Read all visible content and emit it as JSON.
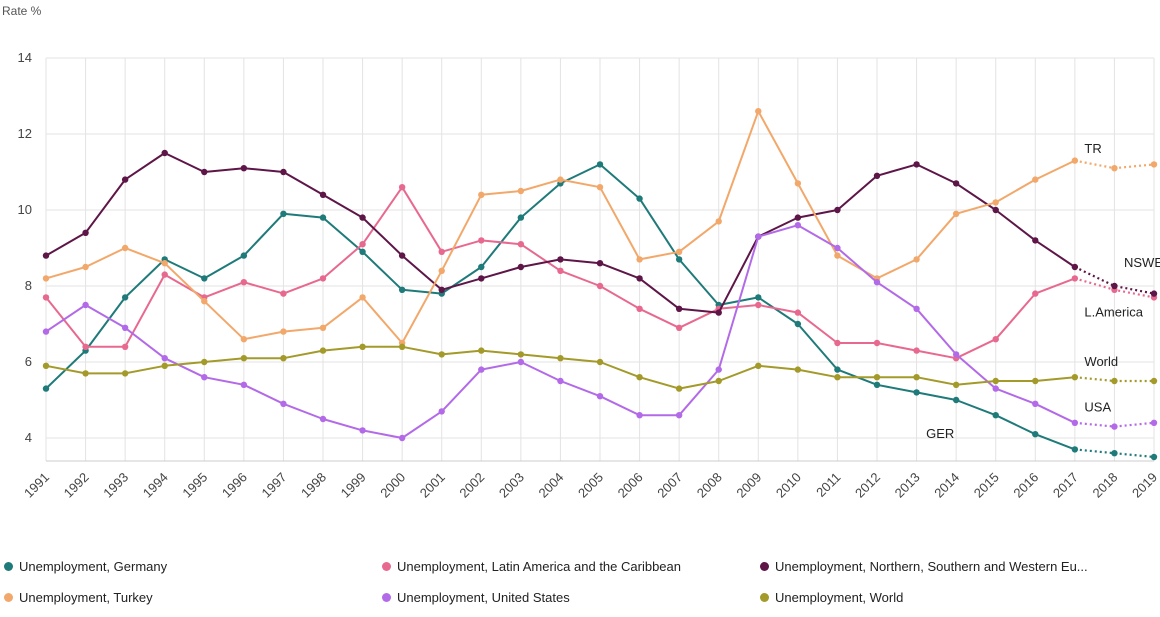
{
  "chart_data": {
    "type": "line",
    "ylabel": "Rate %",
    "xlabel": "",
    "ylim": [
      3.5,
      14
    ],
    "yticks": [
      4,
      6,
      8,
      10,
      12,
      14
    ],
    "grid": true,
    "legend_position": "bottom",
    "categories": [
      "1991",
      "1992",
      "1993",
      "1994",
      "1995",
      "1996",
      "1997",
      "1998",
      "1999",
      "2000",
      "2001",
      "2002",
      "2003",
      "2004",
      "2005",
      "2006",
      "2007",
      "2008",
      "2009",
      "2010",
      "2011",
      "2012",
      "2013",
      "2014",
      "2015",
      "2016",
      "2017",
      "2018",
      "2019"
    ],
    "series": [
      {
        "name": "Unemployment, Germany",
        "color": "#1f7a7a",
        "values": [
          5.3,
          6.3,
          7.7,
          8.7,
          8.2,
          8.8,
          9.9,
          9.8,
          8.9,
          7.9,
          7.8,
          8.5,
          9.8,
          10.7,
          11.2,
          10.3,
          8.7,
          7.5,
          7.7,
          7.0,
          5.8,
          5.4,
          5.2,
          5.0,
          4.6,
          4.1,
          3.7,
          3.6,
          3.5
        ]
      },
      {
        "name": "Unemployment, Latin America and the Caribbean",
        "color": "#e8698f",
        "values": [
          7.7,
          6.4,
          6.4,
          8.3,
          7.7,
          8.1,
          7.8,
          8.2,
          9.1,
          10.6,
          8.9,
          9.2,
          9.1,
          8.4,
          8.0,
          7.4,
          6.9,
          7.4,
          7.5,
          7.3,
          6.5,
          6.5,
          6.3,
          6.1,
          6.6,
          7.8,
          8.2,
          7.9,
          7.7
        ]
      },
      {
        "name": "Unemployment, Northern, Southern and Western Eu...",
        "color": "#5e1547",
        "values": [
          8.8,
          9.4,
          10.8,
          11.5,
          11.0,
          11.1,
          11.0,
          10.4,
          9.8,
          8.8,
          7.9,
          8.2,
          8.5,
          8.7,
          8.6,
          8.2,
          7.4,
          7.3,
          9.3,
          9.8,
          10.0,
          10.9,
          11.2,
          10.7,
          10.0,
          9.2,
          8.5,
          8.0,
          7.8
        ]
      },
      {
        "name": "Unemployment, Turkey",
        "color": "#f2a86a",
        "values": [
          8.2,
          8.5,
          9.0,
          8.6,
          7.6,
          6.6,
          6.8,
          6.9,
          7.7,
          6.5,
          8.4,
          10.4,
          10.5,
          10.8,
          10.6,
          8.7,
          8.9,
          9.7,
          12.6,
          10.7,
          8.8,
          8.2,
          8.7,
          9.9,
          10.2,
          10.8,
          11.3,
          11.1,
          11.2
        ]
      },
      {
        "name": "Unemployment, United States",
        "color": "#b36ae8",
        "values": [
          6.8,
          7.5,
          6.9,
          6.1,
          5.6,
          5.4,
          4.9,
          4.5,
          4.2,
          4.0,
          4.7,
          5.8,
          6.0,
          5.5,
          5.1,
          4.6,
          4.6,
          5.8,
          9.3,
          9.6,
          9.0,
          8.1,
          7.4,
          6.2,
          5.3,
          4.9,
          4.4,
          4.3,
          4.4
        ]
      },
      {
        "name": "Unemployment, World",
        "color": "#a39a2a",
        "values": [
          5.9,
          5.7,
          5.7,
          5.9,
          6.0,
          6.1,
          6.1,
          6.3,
          6.4,
          6.4,
          6.2,
          6.3,
          6.2,
          6.1,
          6.0,
          5.6,
          5.3,
          5.5,
          5.9,
          5.8,
          5.6,
          5.6,
          5.6,
          5.4,
          5.5,
          5.5,
          5.6,
          5.5,
          5.5
        ]
      }
    ],
    "projection_from": "2017",
    "annotations": [
      {
        "text": "TR",
        "x": "2018",
        "y": 11.6
      },
      {
        "text": "NSWEurope",
        "x": "2019",
        "y": 8.6
      },
      {
        "text": "L.America",
        "x": "2018",
        "y": 7.3
      },
      {
        "text": "World",
        "x": "2018",
        "y": 6.0
      },
      {
        "text": "USA",
        "x": "2018",
        "y": 4.8
      },
      {
        "text": "GER",
        "x": "2014",
        "y": 4.1
      }
    ]
  }
}
